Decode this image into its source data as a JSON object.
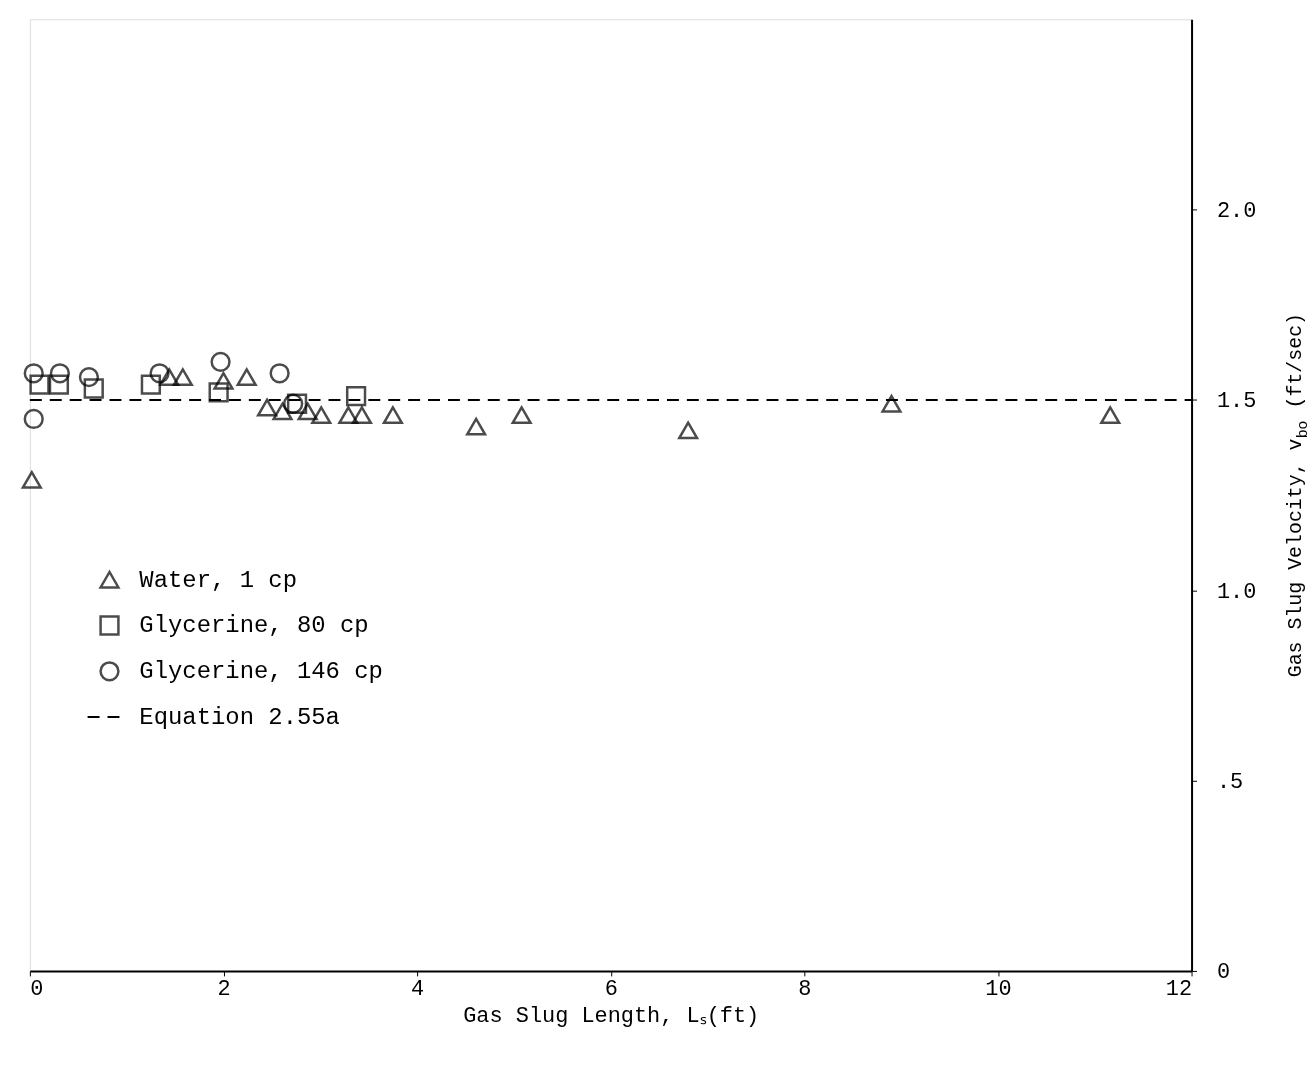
{
  "chart_data": {
    "type": "scatter",
    "xlabel": "Gas Slug Length, Lₛ(ft)",
    "ylabel": "Gas Slug Velocity, v$_{bo}$ (ft/sec)",
    "xlim": [
      0,
      12
    ],
    "xticks": [
      0,
      2,
      4,
      6,
      8,
      10,
      12
    ],
    "ylim": [
      0,
      2.5
    ],
    "yticks": [
      0,
      {
        "value": 0.5,
        "label": ".5"
      },
      {
        "value": 1.0,
        "label": "1.0"
      },
      {
        "value": 1.5,
        "label": "1.5"
      },
      {
        "value": 2.0,
        "label": "2.0"
      }
    ],
    "grid": false,
    "legend": "left",
    "series": [
      {
        "name": "Water, 1 cp",
        "marker": "triangle",
        "color": "#000000",
        "x": [
          0.02,
          1.44,
          1.58,
          2.0,
          2.24,
          2.45,
          2.61,
          2.87,
          3.01,
          3.29,
          3.43,
          3.75,
          4.61,
          5.08,
          6.8,
          8.9,
          11.16
        ],
        "values": [
          1.29,
          1.56,
          1.56,
          1.55,
          1.56,
          1.48,
          1.47,
          1.47,
          1.46,
          1.46,
          1.46,
          1.46,
          1.43,
          1.46,
          1.42,
          1.49,
          1.46
        ]
      },
      {
        "name": "Glycerine, 80 cp",
        "marker": "square",
        "color": "#000000",
        "x": [
          0.1,
          0.3,
          0.66,
          1.25,
          1.95,
          2.76,
          3.37
        ],
        "values": [
          1.54,
          1.54,
          1.53,
          1.54,
          1.52,
          1.49,
          1.51
        ]
      },
      {
        "name": "Glycerine, 146 cp",
        "marker": "circle",
        "color": "#000000",
        "x": [
          0.04,
          0.04,
          0.31,
          0.61,
          1.34,
          1.97,
          2.58,
          2.72
        ],
        "values": [
          1.57,
          1.45,
          1.57,
          1.56,
          1.57,
          1.6,
          1.57,
          1.49
        ]
      },
      {
        "name": "Equation 2.55a",
        "type": "line",
        "line_style": "dashed",
        "color": "#000000",
        "x": [
          0,
          12
        ],
        "values": [
          1.5,
          1.5
        ]
      }
    ]
  }
}
